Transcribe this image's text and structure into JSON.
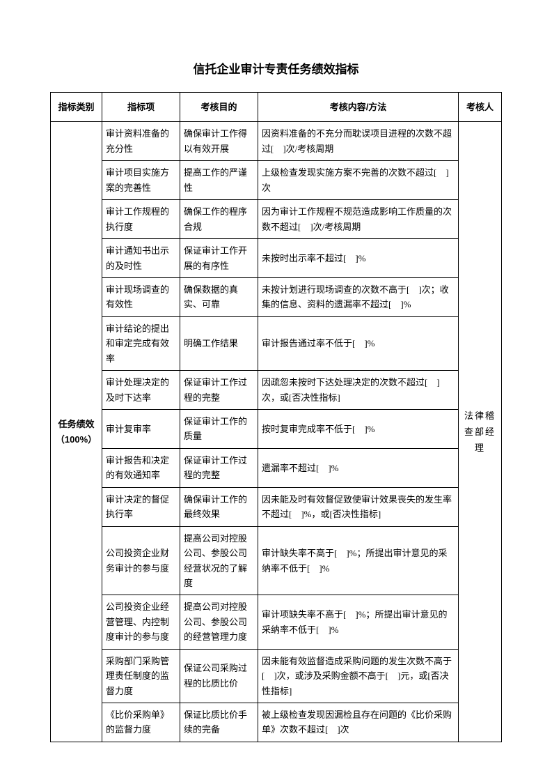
{
  "title": "信托企业审计专责任务绩效指标",
  "headers": {
    "category": "指标类别",
    "indicator": "指标项",
    "purpose": "考核目的",
    "content": "考核内容/方法",
    "assessor": "考核人"
  },
  "category": "任务绩效（100%）",
  "assessor": "法律稽查部经理",
  "rows": [
    {
      "indicator": "审计资料准备的充分性",
      "purpose": "确保审计工作得以有效开展",
      "content": "因资料准备的不充分而耽误项目进程的次数不超过[　]次/考核周期"
    },
    {
      "indicator": "审计项目实施方案的完善性",
      "purpose": "提高工作的严谨性",
      "content": "上级检查发现实施方案不完善的次数不超过[　]次"
    },
    {
      "indicator": "审计工作规程的执行度",
      "purpose": "确保工作的程序合规",
      "content": "因为审计工作规程不规范造成影响工作质量的次数不超过[　]次/考核周期"
    },
    {
      "indicator": "审计通知书出示的及时性",
      "purpose": "保证审计工作开展的有序性",
      "content": "未按时出示率不超过[　]%"
    },
    {
      "indicator": "审计现场调查的有效性",
      "purpose": "确保数据的真实、可靠",
      "content": "未按计划进行现场调查的次数不高于[　]次；收集的信息、资料的遗漏率不超过[　]%"
    },
    {
      "indicator": "审计结论的提出和审定完成有效率",
      "purpose": "明确工作结果",
      "content": "审计报告通过率不低于[　]%"
    },
    {
      "indicator": "审计处理决定的及时下达率",
      "purpose": "保证审计工作过程的完整",
      "content": "因疏忽未按时下达处理决定的次数不超过[　]次，或[否决性指标]"
    },
    {
      "indicator": "审计复审率",
      "purpose": "保证审计工作的质量",
      "content": "按时复审完成率不低于[　]%"
    },
    {
      "indicator": "审计报告和决定的有效通知率",
      "purpose": "保证审计工作过程的完整",
      "content": "遗漏率不超过[　]%"
    },
    {
      "indicator": "审计决定的督促执行率",
      "purpose": "确保审计工作的最终效果",
      "content": "因未能及时有效督促致使审计效果丧失的发生率不超过[　]%，或[否决性指标]"
    },
    {
      "indicator": "公司投资企业财务审计的参与度",
      "purpose": "提高公司对控股公司、参股公司经营状况的了解度",
      "content": "审计缺失率不高于[　]%；所提出审计意见的采纳率不低于[　]%"
    },
    {
      "indicator": "公司投资企业经营管理、内控制度审计的参与度",
      "purpose": "提高公司对控股公司、参股公司的经营管理力度",
      "content": "审计项缺失率不高于[　]%；所提出审计意见的采纳率不低于[　]%"
    },
    {
      "indicator": "采购部门采购管理责任制度的监督力度",
      "purpose": "保证公司采购过程的比质比价",
      "content": "因未能有效监督造成采购问题的发生次数不高于[　]次，或涉及采购金额不高于[　]元，或[否决性指标]"
    },
    {
      "indicator": "《比价采购单》的监督力度",
      "purpose": "保证比质比价手续的完备",
      "content": "被上级检查发现因漏检且存在问题的《比价采购单》次数不超过[　]次"
    }
  ]
}
